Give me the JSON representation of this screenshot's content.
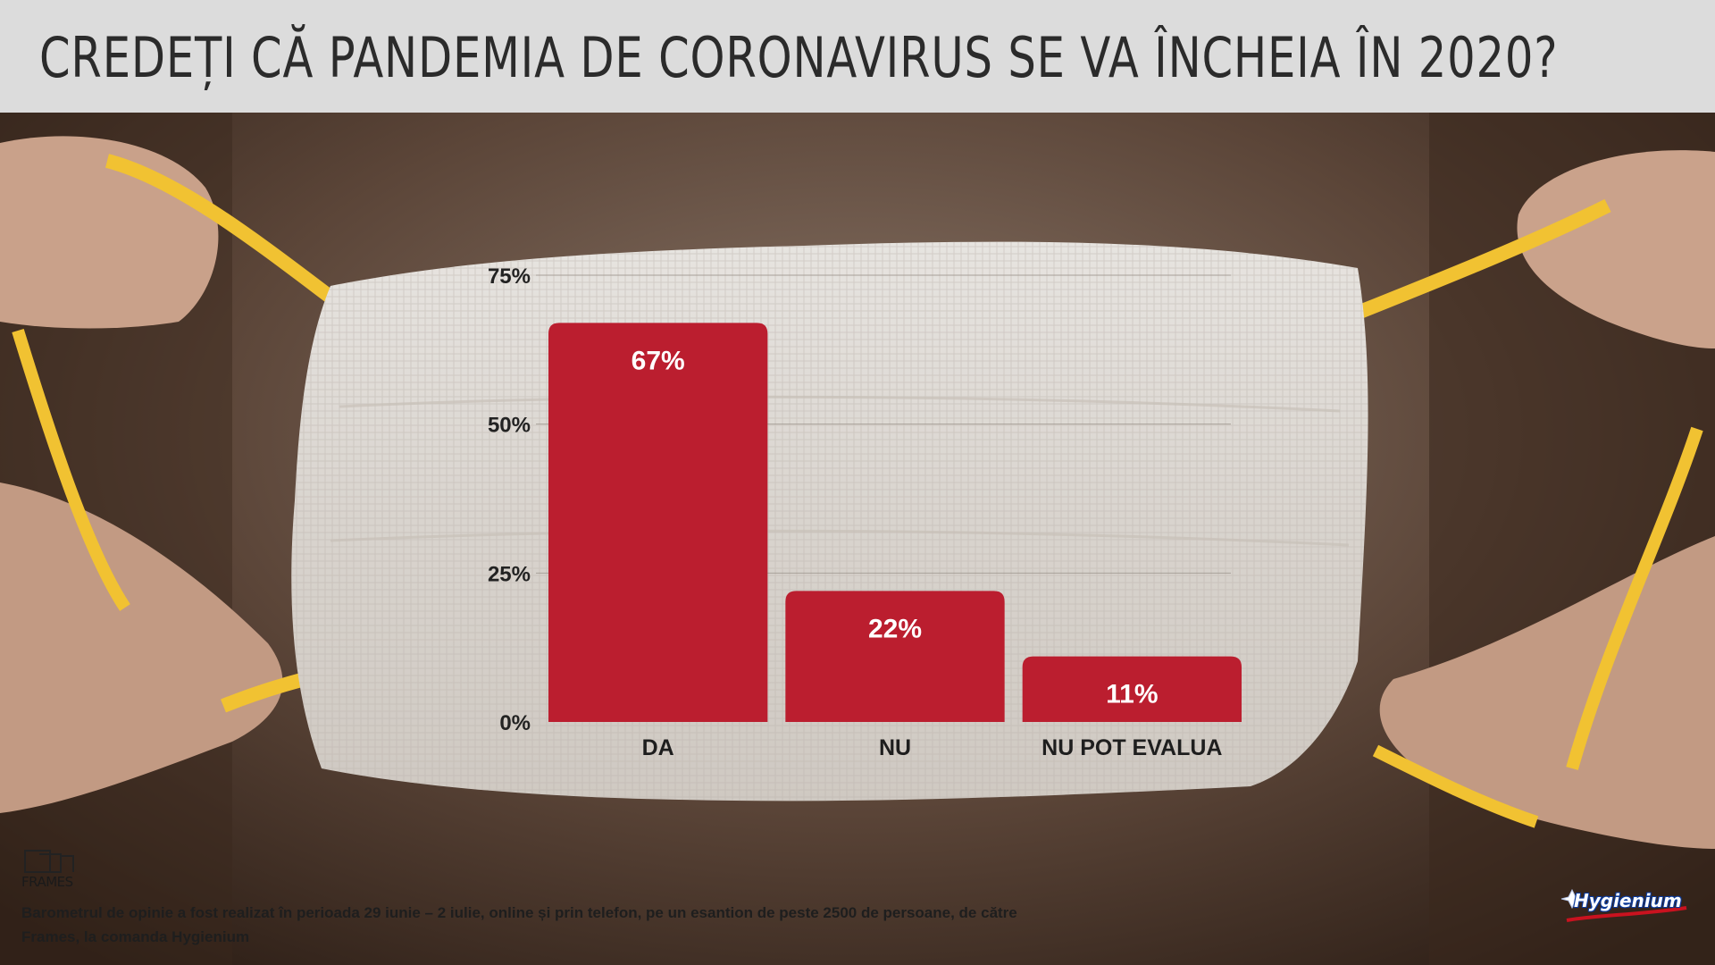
{
  "title": "CREDEȚI CĂ PANDEMIA DE CORONAVIRUS SE VA ÎNCHEIA ÎN 2020?",
  "footnote": "Barometrul de opinie a fost realizat în perioada 29 iunie – 2 iulie, online și prin telefon, pe un esantion de peste 2500 de persoane, de către Frames, la comanda Hygienium",
  "logos": {
    "left": "FRAMES",
    "right": "Hygienium"
  },
  "colors": {
    "bar": "#bb1e2f",
    "title_bar": "#dcdcdc",
    "title_text": "#2b2b2b"
  },
  "chart_data": {
    "type": "bar",
    "categories": [
      "DA",
      "NU",
      "NU POT EVALUA"
    ],
    "values": [
      67,
      22,
      11
    ],
    "value_labels": [
      "67%",
      "22%",
      "11%"
    ],
    "ylim": [
      0,
      75
    ],
    "yticks": [
      0,
      25,
      50,
      75
    ],
    "ytick_labels": [
      "0%",
      "25%",
      "50%",
      "75%"
    ],
    "grid": true,
    "legend": "none"
  }
}
